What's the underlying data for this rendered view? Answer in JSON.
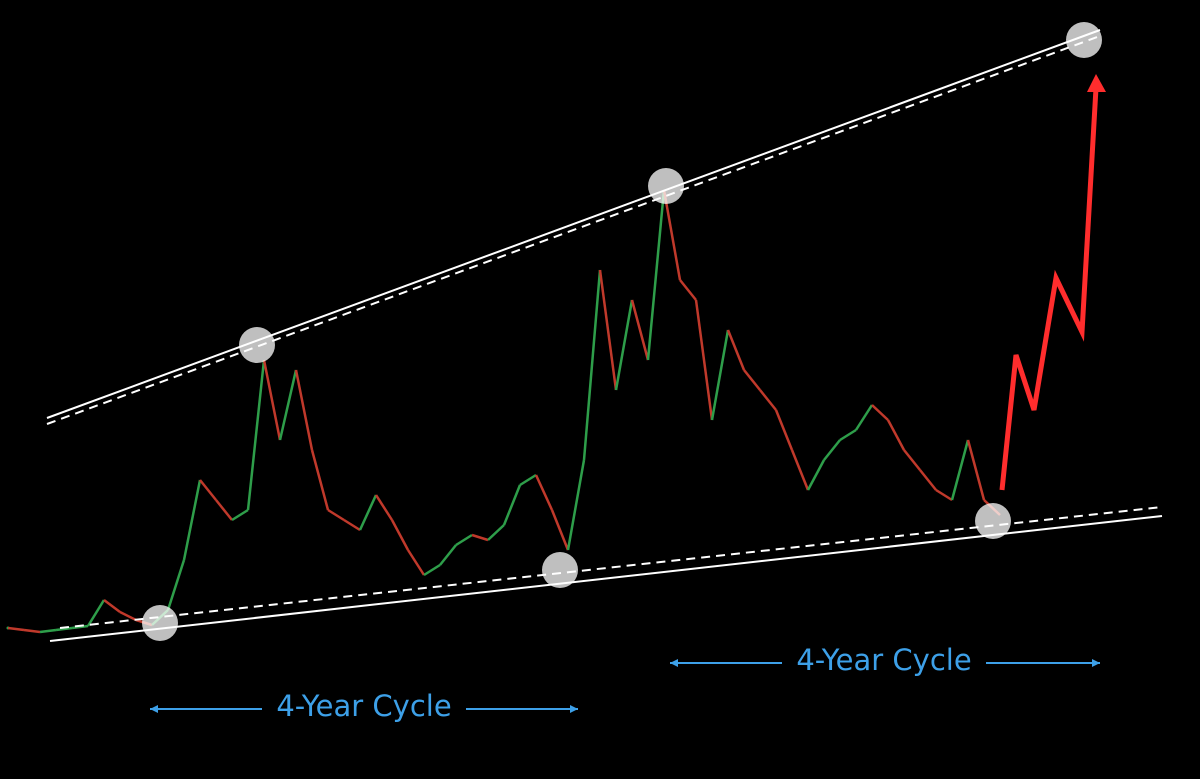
{
  "chart_data": {
    "type": "line",
    "values": [
      6.4,
      6,
      5.6,
      6,
      6.4,
      6.8,
      12,
      9.6,
      8,
      7,
      10,
      20,
      36,
      32,
      28,
      30,
      60,
      44,
      58,
      42,
      30,
      28,
      26,
      33,
      28,
      22,
      17,
      19,
      23,
      25,
      24,
      27,
      35,
      37,
      30,
      22,
      40,
      78,
      54,
      72,
      60,
      94,
      76,
      72,
      48,
      66,
      58,
      54,
      50,
      42,
      34,
      40,
      44,
      46,
      51,
      48,
      42,
      38,
      34,
      32,
      44,
      32,
      29
    ],
    "up_color": "#2e9e4a",
    "down_color": "#c0392b",
    "ylim": [
      0,
      100
    ],
    "annotations": [
      "4-Year Cycle",
      "4-Year Cycle"
    ],
    "annotation_color": "#3da0e8"
  }
}
